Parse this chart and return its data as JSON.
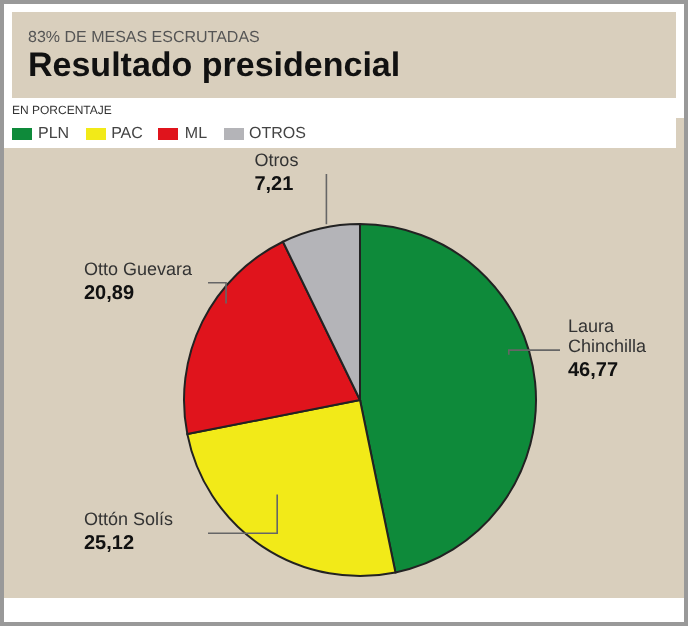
{
  "chart_data": {
    "type": "pie",
    "subtitle": "83% DE MESAS ESCRUTADAS",
    "title": "Resultado presidencial",
    "categories": [
      "PLN",
      "PAC",
      "ML",
      "OTROS"
    ],
    "values": [
      46.77,
      25.12,
      20.89,
      7.21
    ],
    "colors": [
      "#0e8a3a",
      "#f2ea18",
      "#e0141c",
      "#b4b4b8"
    ],
    "value_labels": [
      "46,77",
      "25,12",
      "20,89",
      "7,21"
    ],
    "annotations": [
      "EN PORCENTAJE",
      {
        "text": "Laura Chinchilla",
        "x": "PLN"
      },
      {
        "text": "Ottón Solís",
        "x": "PAC"
      },
      {
        "text": "Otto Guevara",
        "x": "ML"
      },
      {
        "text": "Otros",
        "x": "OTROS"
      }
    ],
    "legend": "top left"
  }
}
